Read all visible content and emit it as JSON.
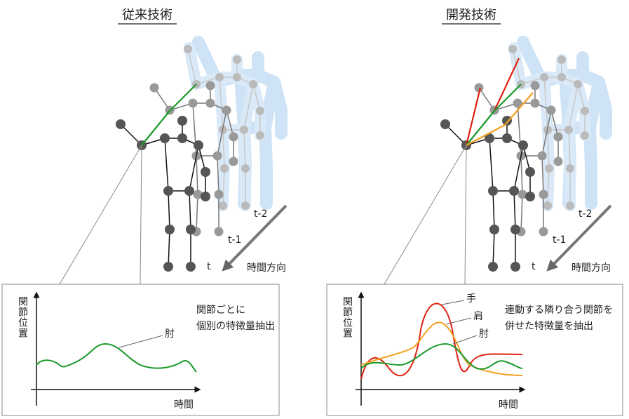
{
  "left": {
    "title": "従来技術",
    "frames": [
      "t-2",
      "t-1",
      "t"
    ],
    "direction": "時間方向",
    "graph": {
      "y_label": "関節位置",
      "x_label": "時間",
      "note": [
        "関節ごとに",
        "個別の特徴量抽出"
      ],
      "curve_labels": [
        "肘"
      ]
    }
  },
  "right": {
    "title": "開発技術",
    "frames": [
      "t-2",
      "t-1",
      "t"
    ],
    "direction": "時間方向",
    "graph": {
      "y_label": "関節位置",
      "x_label": "時間",
      "note": [
        "連動する隣り合う関節を",
        "併せた特徴量を抽出"
      ],
      "curve_labels": [
        "手",
        "肩",
        "肘"
      ]
    }
  }
}
